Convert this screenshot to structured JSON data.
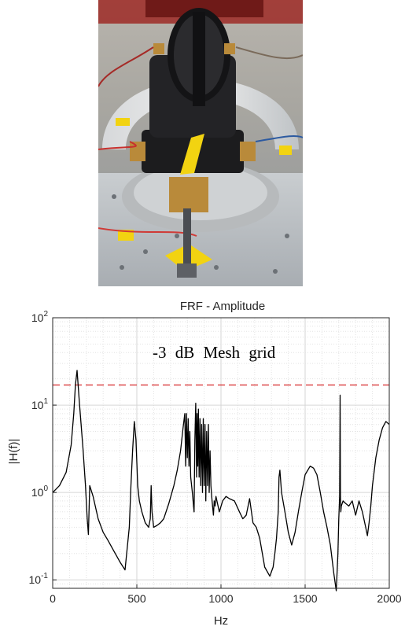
{
  "photo": {
    "description_icon": "vibration-test-fixture-photo"
  },
  "chart_data": {
    "type": "line",
    "title": "FRF - Amplitude",
    "xlabel": "Hz",
    "ylabel": "|H(f)|",
    "xlim": [
      0,
      2000
    ],
    "ylim": [
      0.08,
      100
    ],
    "yscale": "log",
    "x_ticks": [
      "0",
      "500",
      "1000",
      "1500",
      "2000"
    ],
    "y_ticks": [
      {
        "base": "10",
        "exp": "-1",
        "value": 0.1
      },
      {
        "base": "10",
        "exp": "0",
        "value": 1
      },
      {
        "base": "10",
        "exp": "1",
        "value": 10
      },
      {
        "base": "10",
        "exp": "2",
        "value": 100
      }
    ],
    "grid": true,
    "annotation": "-3 dB Mesh grid",
    "threshold": {
      "value": 17,
      "color": "#d62728"
    },
    "series": [
      {
        "color": "#000000",
        "x": [
          0,
          40,
          80,
          110,
          125,
          135,
          145,
          160,
          180,
          195,
          205,
          212,
          220,
          240,
          270,
          300,
          330,
          360,
          400,
          430,
          455,
          465,
          475,
          485,
          495,
          500,
          505,
          515,
          530,
          550,
          570,
          580,
          585,
          590,
          600,
          620,
          640,
          660,
          690,
          720,
          740,
          760,
          775,
          785,
          790,
          795,
          800,
          805,
          810,
          815,
          820,
          830,
          840,
          845,
          850,
          855,
          858,
          862,
          866,
          870,
          875,
          880,
          885,
          890,
          895,
          900,
          905,
          910,
          915,
          920,
          925,
          930,
          935,
          940,
          945,
          950,
          955,
          960,
          965,
          970,
          990,
          1010,
          1030,
          1050,
          1080,
          1110,
          1130,
          1150,
          1170,
          1190,
          1210,
          1230,
          1260,
          1290,
          1310,
          1320,
          1330,
          1340,
          1345,
          1350,
          1360,
          1380,
          1400,
          1420,
          1440,
          1460,
          1480,
          1500,
          1530,
          1550,
          1570,
          1590,
          1610,
          1630,
          1650,
          1670,
          1685,
          1695,
          1700,
          1705,
          1708,
          1710,
          1712,
          1715,
          1725,
          1740,
          1760,
          1780,
          1800,
          1820,
          1840,
          1860,
          1870,
          1880,
          1890,
          1900,
          1920,
          1940,
          1960,
          1980,
          2000
        ],
        "values": [
          1.0,
          1.2,
          1.7,
          3.5,
          8,
          17,
          25,
          10,
          3.2,
          1.2,
          0.5,
          0.33,
          1.2,
          0.9,
          0.5,
          0.35,
          0.28,
          0.22,
          0.16,
          0.13,
          0.4,
          1.2,
          3,
          6.5,
          4,
          2.2,
          1.2,
          0.8,
          0.6,
          0.45,
          0.4,
          0.5,
          1.2,
          0.6,
          0.4,
          0.42,
          0.45,
          0.5,
          0.75,
          1.2,
          1.8,
          3.0,
          5.5,
          8,
          2,
          8,
          2.5,
          7,
          2,
          5,
          1.5,
          1.0,
          0.6,
          4,
          10.5,
          1.5,
          8,
          2,
          9,
          1.5,
          7,
          1.2,
          6,
          1.0,
          7,
          1.2,
          6,
          0.8,
          5,
          1.2,
          6,
          1.0,
          3,
          1.2,
          0.9,
          0.7,
          0.55,
          0.8,
          0.7,
          0.9,
          0.6,
          0.8,
          0.9,
          0.85,
          0.8,
          0.6,
          0.5,
          0.55,
          0.85,
          0.45,
          0.4,
          0.3,
          0.14,
          0.11,
          0.14,
          0.2,
          0.3,
          0.6,
          1.5,
          1.8,
          1.0,
          0.6,
          0.35,
          0.25,
          0.35,
          0.6,
          1.0,
          1.6,
          2.0,
          1.9,
          1.6,
          1.0,
          0.6,
          0.4,
          0.25,
          0.12,
          0.075,
          0.2,
          0.5,
          0.9,
          13,
          0.9,
          0.6,
          0.7,
          0.8,
          0.75,
          0.7,
          0.8,
          0.55,
          0.8,
          0.6,
          0.4,
          0.32,
          0.45,
          0.7,
          1.2,
          2.5,
          4,
          5.5,
          6.5,
          6
        ]
      }
    ]
  }
}
